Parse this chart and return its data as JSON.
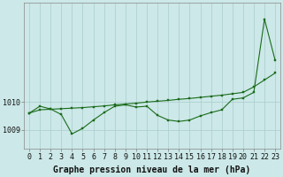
{
  "background_color": "#cce8e8",
  "grid_color": "#aacccc",
  "line_color": "#1a6b1a",
  "marker_color": "#1a6b1a",
  "xlabel": "Graphe pression niveau de la mer (hPa)",
  "xlabel_fontsize": 7,
  "tick_fontsize": 6,
  "ytick_labels": [
    1009,
    1010
  ],
  "ylim_min": 1008.3,
  "ylim_max": 1013.6,
  "xlim_min": -0.5,
  "xlim_max": 23.5,
  "x_hours": [
    0,
    1,
    2,
    3,
    4,
    5,
    6,
    7,
    8,
    9,
    10,
    11,
    12,
    13,
    14,
    15,
    16,
    17,
    18,
    19,
    20,
    21,
    22,
    23
  ],
  "series1": [
    1009.6,
    1009.72,
    1009.74,
    1009.76,
    1009.78,
    1009.8,
    1009.83,
    1009.86,
    1009.9,
    1009.93,
    1009.96,
    1010.0,
    1010.03,
    1010.06,
    1010.1,
    1010.13,
    1010.17,
    1010.21,
    1010.25,
    1010.3,
    1010.35,
    1010.55,
    1010.8,
    1011.05
  ],
  "series2": [
    1009.6,
    1009.85,
    1009.75,
    1009.55,
    1008.85,
    1009.05,
    1009.35,
    1009.62,
    1009.85,
    1009.9,
    1009.82,
    1009.85,
    1009.52,
    1009.35,
    1009.3,
    1009.35,
    1009.5,
    1009.62,
    1009.72,
    1010.1,
    1010.15,
    1010.35,
    1013.0,
    1011.5
  ],
  "marker_size": 2.0,
  "linewidth": 0.8
}
